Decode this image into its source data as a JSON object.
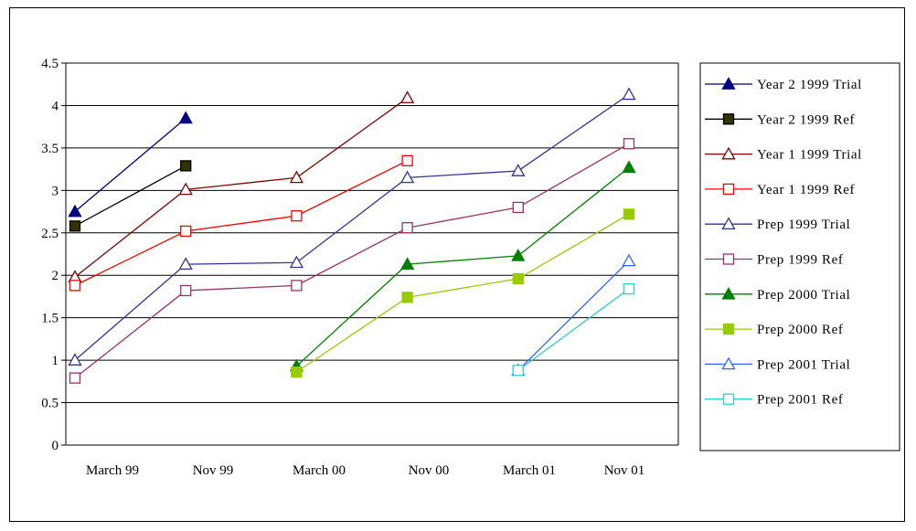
{
  "chart_data": {
    "type": "line",
    "title": "",
    "xlabel": "",
    "ylabel": "",
    "categories": [
      "March 99",
      "Nov 99",
      "March 00",
      "Nov 00",
      "March 01",
      "Nov 01"
    ],
    "ylim": [
      0,
      4.5
    ],
    "yticks": [
      "0",
      "0.5",
      "1",
      "1.5",
      "2",
      "2.5",
      "3",
      "3.5",
      "4",
      "4.5"
    ],
    "grid": "horizontal",
    "legend_position": "right",
    "series": [
      {
        "name": "Year 2 1999 Trial",
        "color": "#000080",
        "marker": "triangle-filled",
        "values": [
          2.75,
          3.85,
          null,
          null,
          null,
          null
        ]
      },
      {
        "name": "Year 2 1999 Ref",
        "color": "#000000",
        "marker": "square-filled",
        "fill": "#333300",
        "values": [
          2.58,
          3.29,
          null,
          null,
          null,
          null
        ]
      },
      {
        "name": "Year 1 1999 Trial",
        "color": "#800000",
        "marker": "triangle-open",
        "values": [
          1.98,
          3.01,
          3.15,
          4.09,
          null,
          null
        ]
      },
      {
        "name": "Year 1 1999 Ref",
        "color": "#ff0000",
        "marker": "square-open",
        "values": [
          1.88,
          2.52,
          2.7,
          3.35,
          null,
          null
        ]
      },
      {
        "name": "Prep 1999 Trial",
        "color": "#333399",
        "marker": "triangle-open",
        "values": [
          1.0,
          2.13,
          2.15,
          3.15,
          3.23,
          4.13
        ]
      },
      {
        "name": "Prep 1999 Ref",
        "color": "#993366",
        "marker": "square-open",
        "values": [
          0.79,
          1.82,
          1.88,
          2.56,
          2.8,
          3.55
        ]
      },
      {
        "name": "Prep 2000 Trial",
        "color": "#008000",
        "marker": "triangle-filled",
        "values": [
          null,
          null,
          0.93,
          2.13,
          2.23,
          3.27
        ]
      },
      {
        "name": "Prep 2000 Ref",
        "color": "#99cc00",
        "marker": "square-filled",
        "fill": "#99cc00",
        "values": [
          null,
          null,
          0.86,
          1.74,
          1.96,
          2.72
        ]
      },
      {
        "name": "Prep 2001 Trial",
        "color": "#3366ff",
        "marker": "triangle-open",
        "values": [
          null,
          null,
          null,
          null,
          0.88,
          2.17
        ]
      },
      {
        "name": "Prep 2001 Ref",
        "color": "#33cccc",
        "marker": "square-open",
        "values": [
          null,
          null,
          null,
          null,
          0.88,
          1.84
        ]
      }
    ]
  }
}
